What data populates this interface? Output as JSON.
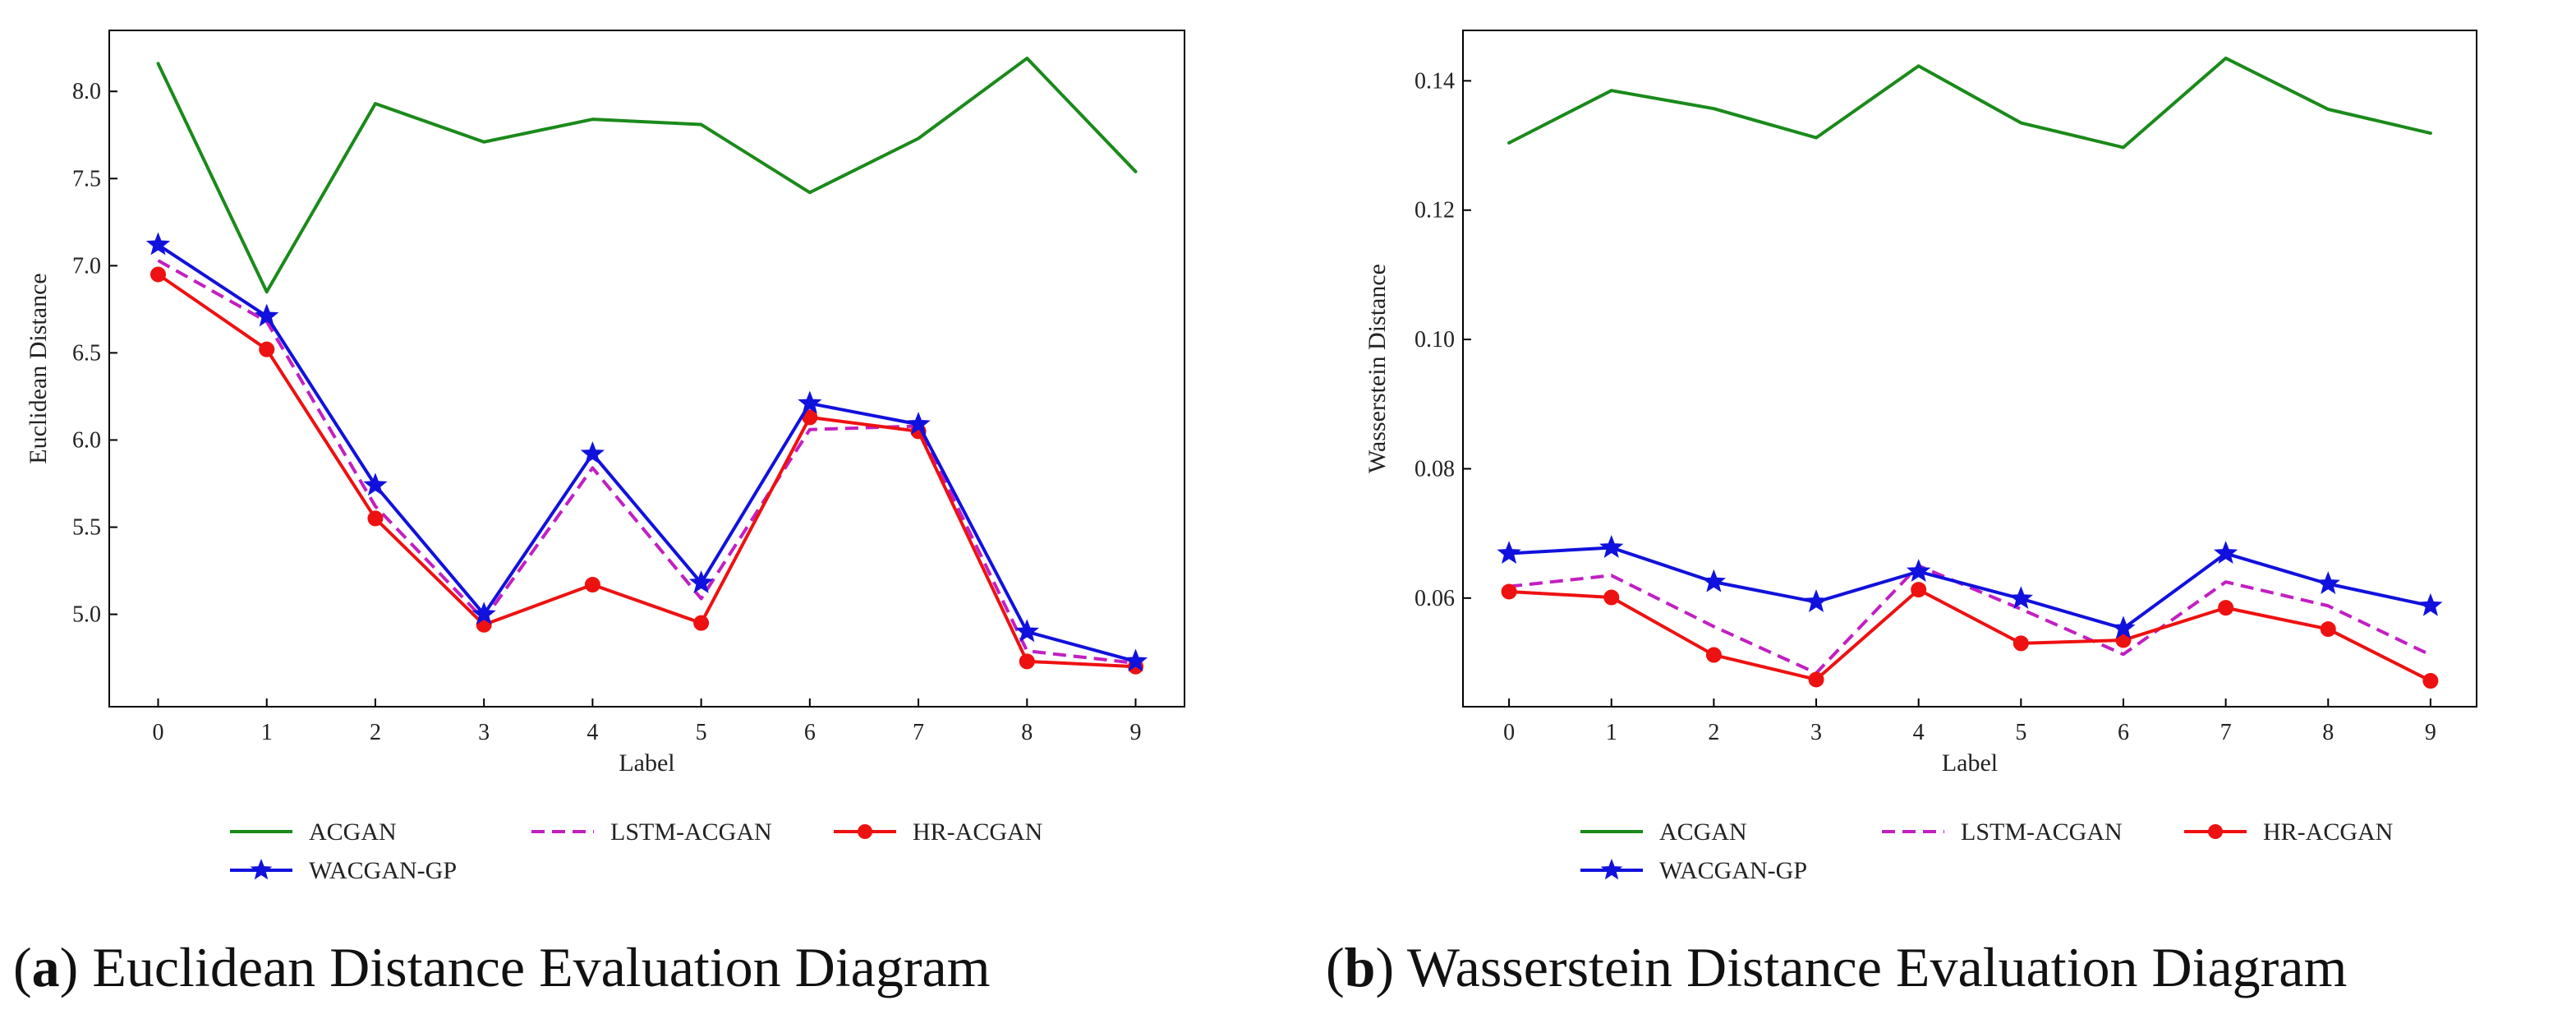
{
  "chart_data": [
    {
      "type": "line",
      "panel": "a",
      "xlabel": "Label",
      "ylabel": "Euclidean Distance",
      "xlim": [
        -0.45,
        9.45
      ],
      "ylim": [
        4.47,
        8.35
      ],
      "x": [
        0,
        1,
        2,
        3,
        4,
        5,
        6,
        7,
        8,
        9
      ],
      "xticks": [
        "0",
        "1",
        "2",
        "3",
        "4",
        "5",
        "6",
        "7",
        "8",
        "9"
      ],
      "yticks": [
        5.0,
        5.5,
        6.0,
        6.5,
        7.0,
        7.5,
        8.0
      ],
      "ytick_labels": [
        "5.0",
        "5.5",
        "6.0",
        "6.5",
        "7.0",
        "7.5",
        "8.0"
      ],
      "series": [
        {
          "name": "ACGAN",
          "color": "#1a8a1a",
          "style": "solid",
          "marker": "none",
          "values": [
            8.16,
            6.85,
            7.93,
            7.71,
            7.84,
            7.81,
            7.42,
            7.73,
            8.19,
            7.54
          ]
        },
        {
          "name": "LSTM-ACGAN",
          "color": "#c21fc2",
          "style": "dashed",
          "marker": "none",
          "values": [
            7.03,
            6.68,
            5.62,
            4.97,
            5.84,
            5.09,
            6.06,
            6.08,
            4.79,
            4.72
          ]
        },
        {
          "name": "HR-ACGAN",
          "color": "#ee1111",
          "style": "solid",
          "marker": "circle",
          "values": [
            6.95,
            6.52,
            5.55,
            4.94,
            5.17,
            4.95,
            6.13,
            6.05,
            4.73,
            4.7
          ]
        },
        {
          "name": "WACGAN-GP",
          "color": "#1111dd",
          "style": "solid",
          "marker": "star",
          "values": [
            7.12,
            6.71,
            5.74,
            5.0,
            5.92,
            5.18,
            6.21,
            6.09,
            4.9,
            4.73
          ]
        }
      ],
      "caption_letter": "a",
      "caption_text": "Euclidean Distance Evaluation Diagram"
    },
    {
      "type": "line",
      "panel": "b",
      "xlabel": "Label",
      "ylabel": "Wasserstein Distance",
      "xlim": [
        -0.45,
        9.45
      ],
      "ylim": [
        0.0432,
        0.1478
      ],
      "x": [
        0,
        1,
        2,
        3,
        4,
        5,
        6,
        7,
        8,
        9
      ],
      "xticks": [
        "0",
        "1",
        "2",
        "3",
        "4",
        "5",
        "6",
        "7",
        "8",
        "9"
      ],
      "yticks": [
        0.06,
        0.08,
        0.1,
        0.12,
        0.14
      ],
      "ytick_labels": [
        "0.06",
        "0.08",
        "0.10",
        "0.12",
        "0.14"
      ],
      "series": [
        {
          "name": "ACGAN",
          "color": "#1a8a1a",
          "style": "solid",
          "marker": "none",
          "values": [
            0.1304,
            0.1385,
            0.1357,
            0.1312,
            0.1423,
            0.1335,
            0.1297,
            0.1435,
            0.1356,
            0.1319
          ]
        },
        {
          "name": "LSTM-ACGAN",
          "color": "#c21fc2",
          "style": "dashed",
          "marker": "none",
          "values": [
            0.0618,
            0.0635,
            0.0556,
            0.0484,
            0.065,
            0.0583,
            0.0513,
            0.0625,
            0.0588,
            0.0512
          ]
        },
        {
          "name": "HR-ACGAN",
          "color": "#ee1111",
          "style": "solid",
          "marker": "circle",
          "values": [
            0.061,
            0.0601,
            0.0512,
            0.0474,
            0.0613,
            0.053,
            0.0535,
            0.0585,
            0.0552,
            0.0472
          ]
        },
        {
          "name": "WACGAN-GP",
          "color": "#1111dd",
          "style": "solid",
          "marker": "star",
          "values": [
            0.0669,
            0.0678,
            0.0625,
            0.0594,
            0.0641,
            0.0599,
            0.0553,
            0.0669,
            0.0622,
            0.0588
          ]
        }
      ],
      "caption_letter": "b",
      "caption_text": "Wasserstein Distance Evaluation Diagram"
    }
  ],
  "legend": {
    "placement": "below-plot",
    "order": [
      "ACGAN",
      "LSTM-ACGAN",
      "HR-ACGAN",
      "WACGAN-GP"
    ]
  }
}
